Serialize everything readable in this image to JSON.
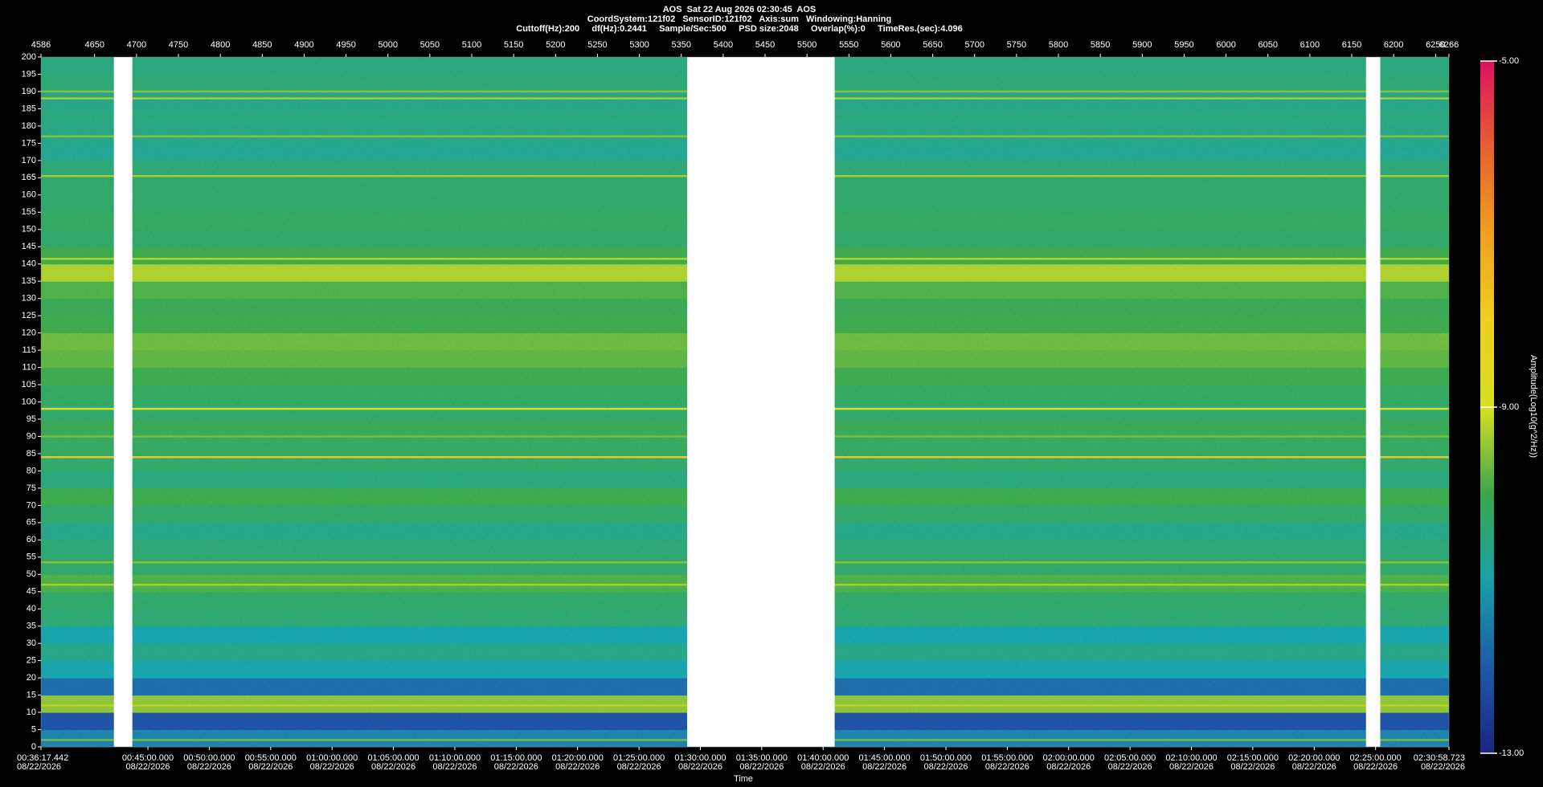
{
  "chart_data": {
    "type": "spectrogram",
    "title": "AOS  Sat 22 Aug 2026 02:30:45  AOS",
    "subtitle_lines": [
      "CoordSystem:121f02   SensorID:121f02   Axis:sum   Windowing:Hanning",
      "Cuttoff(Hz):200     df(Hz):0.2441     Sample/Sec:500     PSD size:2048     Overlap(%):0     TimeRes.(sec):4.096"
    ],
    "x_label": "Time",
    "colorbar_label": "Amplitude(Log10(g^2/Hz))",
    "xlim": [
      4586,
      6266
    ],
    "xticks": [
      4586,
      4650,
      4700,
      4750,
      4800,
      4850,
      4900,
      4950,
      5000,
      5050,
      5100,
      5150,
      5200,
      5250,
      5300,
      5350,
      5400,
      5450,
      5500,
      5550,
      5600,
      5650,
      5700,
      5750,
      5800,
      5850,
      5900,
      5950,
      6000,
      6050,
      6100,
      6150,
      6200,
      6250,
      6266
    ],
    "x2lim": [
      2177.442,
      9058.723
    ],
    "x2ticks": [
      {
        "value": 2177.442,
        "label": "00:36:17.442"
      },
      {
        "value": 2700,
        "label": "00:45:00.000"
      },
      {
        "value": 3000,
        "label": "00:50:00.000"
      },
      {
        "value": 3300,
        "label": "00:55:00.000"
      },
      {
        "value": 3600,
        "label": "01:00:00.000"
      },
      {
        "value": 3900,
        "label": "01:05:00.000"
      },
      {
        "value": 4200,
        "label": "01:10:00.000"
      },
      {
        "value": 4500,
        "label": "01:15:00.000"
      },
      {
        "value": 4800,
        "label": "01:20:00.000"
      },
      {
        "value": 5100,
        "label": "01:25:00.000"
      },
      {
        "value": 5400,
        "label": "01:30:00.000"
      },
      {
        "value": 5700,
        "label": "01:35:00.000"
      },
      {
        "value": 6000,
        "label": "01:40:00.000"
      },
      {
        "value": 6300,
        "label": "01:45:00.000"
      },
      {
        "value": 6600,
        "label": "01:50:00.000"
      },
      {
        "value": 6900,
        "label": "01:55:00.000"
      },
      {
        "value": 7200,
        "label": "02:00:00.000"
      },
      {
        "value": 7500,
        "label": "02:05:00.000"
      },
      {
        "value": 7800,
        "label": "02:10:00.000"
      },
      {
        "value": 8100,
        "label": "02:15:00.000"
      },
      {
        "value": 8400,
        "label": "02:20:00.000"
      },
      {
        "value": 8700,
        "label": "02:25:00.000"
      },
      {
        "value": 9058.723,
        "label": "02:30:58.723"
      }
    ],
    "date": "08/22/2026",
    "ylim": [
      0,
      200
    ],
    "yticks": [
      0,
      5,
      10,
      15,
      20,
      25,
      30,
      35,
      40,
      45,
      50,
      55,
      60,
      65,
      70,
      75,
      80,
      85,
      90,
      95,
      100,
      105,
      110,
      115,
      120,
      125,
      130,
      135,
      140,
      145,
      150,
      155,
      160,
      165,
      170,
      175,
      180,
      185,
      190,
      195,
      200
    ],
    "clim": [
      -13,
      -5
    ],
    "cticks": [
      {
        "value": -13,
        "label": "-13.00"
      },
      {
        "value": -9,
        "label": "-9.00"
      },
      {
        "value": -5,
        "label": "-5.00"
      }
    ],
    "colormap": [
      "#1c2580",
      "#1e5aa8",
      "#17a0a8",
      "#3aa64a",
      "#d8e020",
      "#f0d020",
      "#f0a020",
      "#e86030",
      "#e01060"
    ],
    "freq_bins": [
      0,
      5,
      10,
      15,
      20,
      25,
      30,
      35,
      40,
      45,
      50,
      55,
      60,
      65,
      70,
      75,
      80,
      85,
      90,
      95,
      100,
      105,
      110,
      115,
      120,
      125,
      130,
      135,
      140,
      145,
      150,
      155,
      160,
      165,
      170,
      175,
      180,
      185,
      190,
      195,
      200
    ],
    "amplitude": [
      -11.5,
      -12.2,
      -9.5,
      -11.8,
      -11.0,
      -10.6,
      -11.0,
      -10.4,
      -10.3,
      -9.9,
      -10.3,
      -10.4,
      -10.6,
      -10.3,
      -10.0,
      -10.5,
      -10.3,
      -10.2,
      -10.1,
      -10.3,
      -10.2,
      -10.0,
      -9.8,
      -9.7,
      -10.0,
      -10.1,
      -9.9,
      -9.3,
      -10.0,
      -10.3,
      -10.2,
      -10.3,
      -10.3,
      -10.4,
      -10.7,
      -10.6,
      -10.5,
      -10.6,
      -10.4,
      -10.5
    ],
    "line_freqs": [
      2,
      12,
      47,
      53.5,
      84,
      90,
      98,
      141.5,
      165.5,
      177,
      188,
      190
    ],
    "line_amplitude": [
      -9.6,
      -9.2,
      -9.3,
      -9.5,
      -7.8,
      -9.6,
      -9.0,
      -9.2,
      -9.3,
      -9.5,
      -9.3,
      -9.5
    ],
    "gaps": [
      [
        4673,
        4695
      ],
      [
        5357,
        5533
      ],
      [
        6167,
        6184
      ]
    ]
  }
}
